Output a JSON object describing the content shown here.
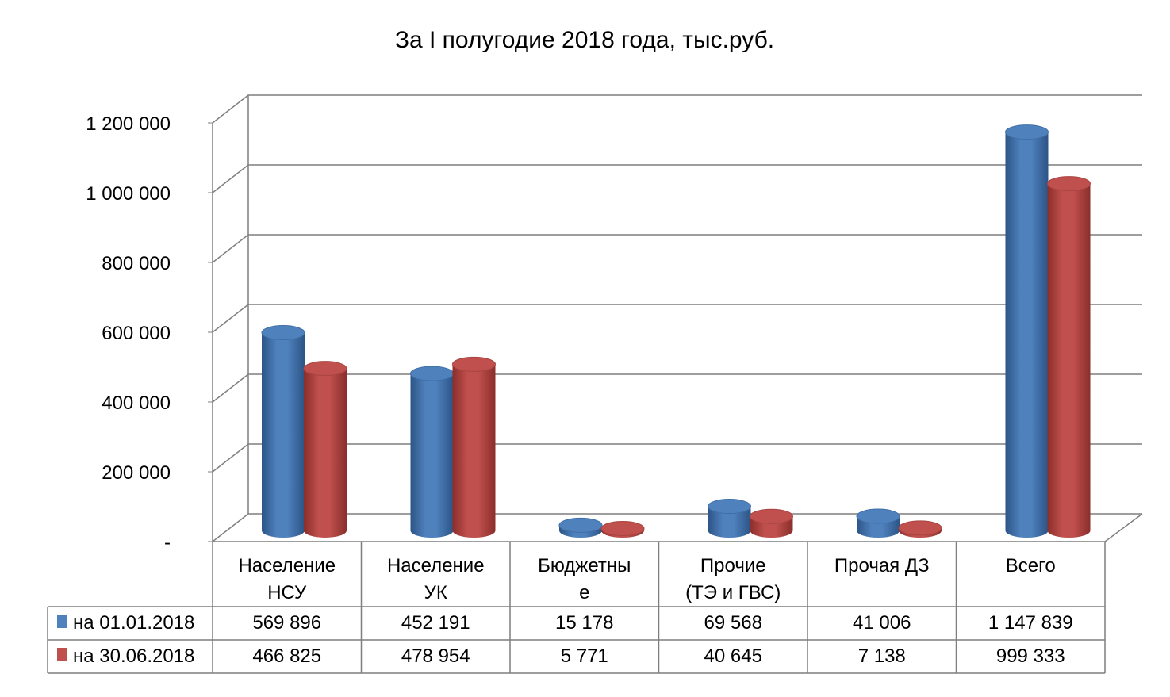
{
  "chart_data": {
    "type": "bar",
    "title": "За  I полугодие 2018 года, тыс.руб.",
    "xlabel": "",
    "ylabel": "",
    "ylim": [
      0,
      1200000
    ],
    "yticks": [
      0,
      200000,
      400000,
      600000,
      800000,
      1000000,
      1200000
    ],
    "ytick_labels": [
      "-",
      "200 000",
      "400 000",
      "600 000",
      "800 000",
      "1 000 000",
      "1 200 000"
    ],
    "grid": true,
    "legend": "data-table-left",
    "categories": [
      [
        "Население",
        "НСУ"
      ],
      [
        "Население",
        "УК"
      ],
      [
        "Бюджетны",
        "е"
      ],
      [
        "Прочие",
        "(ТЭ и ГВС)"
      ],
      [
        "Прочая ДЗ"
      ],
      [
        "Всего"
      ]
    ],
    "series": [
      {
        "name": "на 01.01.2018",
        "color": "#4F81BD",
        "values": [
          569896,
          452191,
          15178,
          69568,
          41006,
          1147839
        ],
        "labels": [
          "569 896",
          "452 191",
          "15 178",
          "69 568",
          "41 006",
          "1 147 839"
        ]
      },
      {
        "name": "на 30.06.2018",
        "color": "#C0504D",
        "values": [
          466825,
          478954,
          5771,
          40645,
          7138,
          999333
        ],
        "labels": [
          "466 825",
          "478 954",
          "5 771",
          "40 645",
          "7 138",
          "999 333"
        ]
      }
    ]
  }
}
